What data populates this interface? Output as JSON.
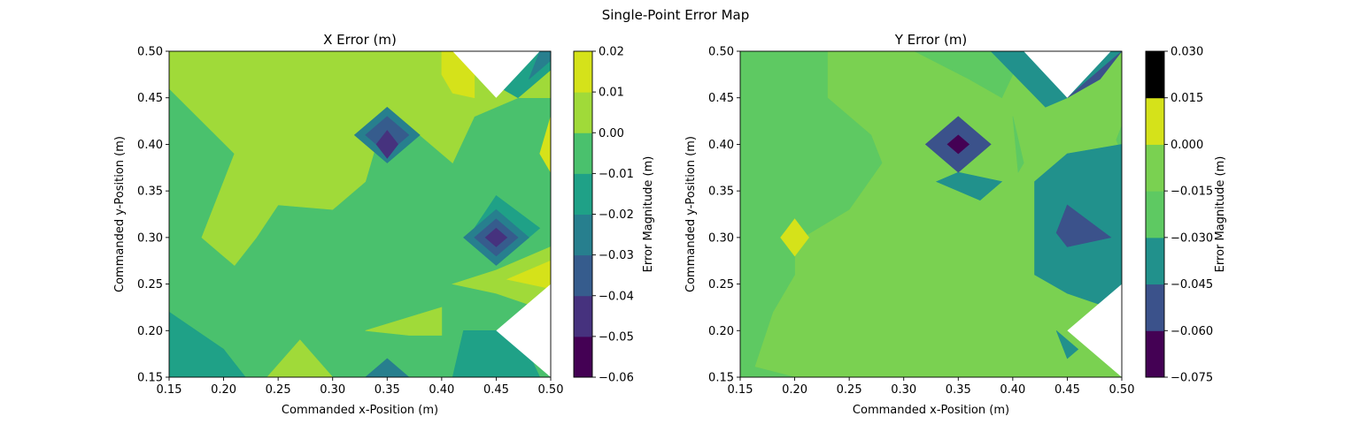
{
  "figure": {
    "suptitle": "Single-Point Error Map"
  },
  "palette": {
    "levels_8": [
      "#440154",
      "#46327e",
      "#365c8d",
      "#277f8e",
      "#1fa187",
      "#4ac16d",
      "#a0da39",
      "#d5e21a"
    ],
    "levels_6": [
      "#440154",
      "#3b528b",
      "#21918c",
      "#5ec962",
      "#7ad151",
      "#d5e21a"
    ]
  },
  "chart_data": [
    {
      "type": "contourf",
      "title": "X Error (m)",
      "xlabel": "Commanded x-Position (m)",
      "ylabel": "Commanded y-Position (m)",
      "xlim": [
        0.15,
        0.5
      ],
      "ylim": [
        0.15,
        0.5
      ],
      "xticks": [
        "0.15",
        "0.20",
        "0.25",
        "0.30",
        "0.35",
        "0.40",
        "0.45",
        "0.50"
      ],
      "yticks": [
        "0.15",
        "0.20",
        "0.25",
        "0.30",
        "0.35",
        "0.40",
        "0.45",
        "0.50"
      ],
      "grid": false,
      "colorbar": {
        "label": "Error Magnitude (m)",
        "levels": [
          -0.06,
          -0.05,
          -0.04,
          -0.03,
          -0.02,
          -0.01,
          0.0,
          0.01,
          0.02
        ],
        "tick_labels": [
          "−0.06",
          "−0.05",
          "−0.04",
          "−0.03",
          "−0.02",
          "−0.01",
          "0.00",
          "0.01",
          "0.02"
        ]
      },
      "regions": [
        {
          "level": 5,
          "points": [
            [
              0.15,
              0.15
            ],
            [
              0.5,
              0.15
            ],
            [
              0.5,
              0.5
            ],
            [
              0.15,
              0.5
            ]
          ]
        },
        {
          "level": 6,
          "points": [
            [
              0.15,
              0.46
            ],
            [
              0.21,
              0.39
            ],
            [
              0.18,
              0.3
            ],
            [
              0.21,
              0.27
            ],
            [
              0.23,
              0.3
            ],
            [
              0.25,
              0.335
            ],
            [
              0.3,
              0.33
            ],
            [
              0.33,
              0.36
            ],
            [
              0.35,
              0.44
            ],
            [
              0.38,
              0.41
            ],
            [
              0.41,
              0.38
            ],
            [
              0.43,
              0.43
            ],
            [
              0.47,
              0.45
            ],
            [
              0.5,
              0.45
            ],
            [
              0.5,
              0.5
            ],
            [
              0.15,
              0.5
            ]
          ]
        },
        {
          "level": 6,
          "points": [
            [
              0.5,
              0.29
            ],
            [
              0.45,
              0.265
            ],
            [
              0.41,
              0.25
            ],
            [
              0.45,
              0.24
            ],
            [
              0.5,
              0.22
            ]
          ]
        },
        {
          "level": 6,
          "points": [
            [
              0.33,
              0.2
            ],
            [
              0.4,
              0.225
            ],
            [
              0.4,
              0.195
            ],
            [
              0.37,
              0.195
            ]
          ]
        },
        {
          "level": 6,
          "points": [
            [
              0.24,
              0.15
            ],
            [
              0.27,
              0.19
            ],
            [
              0.3,
              0.15
            ]
          ]
        },
        {
          "level": 7,
          "points": [
            [
              0.4,
              0.5
            ],
            [
              0.4,
              0.475
            ],
            [
              0.41,
              0.455
            ],
            [
              0.43,
              0.45
            ],
            [
              0.43,
              0.5
            ]
          ]
        },
        {
          "level": 7,
          "points": [
            [
              0.5,
              0.43
            ],
            [
              0.49,
              0.39
            ],
            [
              0.5,
              0.37
            ]
          ]
        },
        {
          "level": 7,
          "points": [
            [
              0.5,
              0.275
            ],
            [
              0.46,
              0.255
            ],
            [
              0.5,
              0.245
            ]
          ]
        },
        {
          "level": 4,
          "points": [
            [
              0.47,
              0.45
            ],
            [
              0.49,
              0.47
            ],
            [
              0.5,
              0.48
            ],
            [
              0.5,
              0.5
            ],
            [
              0.45,
              0.5
            ],
            [
              0.44,
              0.47
            ]
          ]
        },
        {
          "level": 4,
          "points": [
            [
              0.43,
              0.31
            ],
            [
              0.45,
              0.345
            ],
            [
              0.49,
              0.31
            ],
            [
              0.46,
              0.28
            ],
            [
              0.44,
              0.28
            ]
          ]
        },
        {
          "level": 4,
          "points": [
            [
              0.15,
              0.17
            ],
            [
              0.21,
              0.15
            ],
            [
              0.19,
              0.15
            ]
          ]
        },
        {
          "level": 4,
          "points": [
            [
              0.42,
              0.2
            ],
            [
              0.47,
              0.2
            ],
            [
              0.49,
              0.15
            ],
            [
              0.41,
              0.15
            ]
          ]
        },
        {
          "level": 4,
          "points": [
            [
              0.15,
              0.22
            ],
            [
              0.2,
              0.18
            ],
            [
              0.22,
              0.15
            ],
            [
              0.15,
              0.15
            ]
          ]
        },
        {
          "level": 3,
          "points": [
            [
              0.35,
              0.44
            ],
            [
              0.38,
              0.41
            ],
            [
              0.35,
              0.38
            ],
            [
              0.32,
              0.41
            ]
          ]
        },
        {
          "level": 3,
          "points": [
            [
              0.45,
              0.33
            ],
            [
              0.48,
              0.3
            ],
            [
              0.45,
              0.27
            ],
            [
              0.42,
              0.3
            ]
          ]
        },
        {
          "level": 3,
          "points": [
            [
              0.35,
              0.17
            ],
            [
              0.37,
              0.15
            ],
            [
              0.33,
              0.15
            ]
          ]
        },
        {
          "level": 3,
          "points": [
            [
              0.48,
              0.47
            ],
            [
              0.5,
              0.49
            ],
            [
              0.5,
              0.5
            ],
            [
              0.49,
              0.5
            ]
          ]
        },
        {
          "level": 2,
          "points": [
            [
              0.35,
              0.43
            ],
            [
              0.37,
              0.41
            ],
            [
              0.35,
              0.39
            ],
            [
              0.33,
              0.41
            ]
          ]
        },
        {
          "level": 2,
          "points": [
            [
              0.45,
              0.32
            ],
            [
              0.47,
              0.3
            ],
            [
              0.45,
              0.28
            ],
            [
              0.43,
              0.3
            ]
          ]
        },
        {
          "level": 1,
          "points": [
            [
              0.35,
              0.415
            ],
            [
              0.36,
              0.4
            ],
            [
              0.35,
              0.385
            ],
            [
              0.34,
              0.4
            ]
          ]
        },
        {
          "level": 1,
          "points": [
            [
              0.45,
              0.31
            ],
            [
              0.46,
              0.3
            ],
            [
              0.45,
              0.29
            ],
            [
              0.44,
              0.3
            ]
          ]
        }
      ],
      "nodata_regions": [
        {
          "points": [
            [
              0.41,
              0.5
            ],
            [
              0.45,
              0.45
            ],
            [
              0.49,
              0.5
            ]
          ]
        },
        {
          "points": [
            [
              0.45,
              0.2
            ],
            [
              0.5,
              0.25
            ],
            [
              0.5,
              0.15
            ]
          ]
        }
      ]
    },
    {
      "type": "contourf",
      "title": "Y Error (m)",
      "xlabel": "Commanded x-Position (m)",
      "ylabel": "Commanded y-Position (m)",
      "xlim": [
        0.15,
        0.5
      ],
      "ylim": [
        0.15,
        0.5
      ],
      "xticks": [
        "0.15",
        "0.20",
        "0.25",
        "0.30",
        "0.35",
        "0.40",
        "0.45",
        "0.50"
      ],
      "yticks": [
        "0.15",
        "0.20",
        "0.25",
        "0.30",
        "0.35",
        "0.40",
        "0.45",
        "0.50"
      ],
      "grid": false,
      "colorbar": {
        "label": "Error Magnitude (m)",
        "levels": [
          -0.075,
          -0.06,
          -0.045,
          -0.03,
          -0.015,
          0.0,
          0.015,
          0.03
        ],
        "tick_labels": [
          "−0.075",
          "−0.060",
          "−0.045",
          "−0.030",
          "−0.015",
          "0.000",
          "0.015",
          "0.030"
        ]
      },
      "regions": [
        {
          "level": 4,
          "points": [
            [
              0.15,
              0.15
            ],
            [
              0.5,
              0.15
            ],
            [
              0.5,
              0.5
            ],
            [
              0.15,
              0.5
            ]
          ]
        },
        {
          "level": 3,
          "points": [
            [
              0.15,
              0.5
            ],
            [
              0.23,
              0.5
            ],
            [
              0.23,
              0.45
            ],
            [
              0.27,
              0.41
            ],
            [
              0.28,
              0.38
            ],
            [
              0.25,
              0.33
            ],
            [
              0.2,
              0.295
            ],
            [
              0.2,
              0.26
            ],
            [
              0.18,
              0.22
            ],
            [
              0.16,
              0.15
            ],
            [
              0.15,
              0.15
            ]
          ]
        },
        {
          "level": 3,
          "points": [
            [
              0.31,
              0.5
            ],
            [
              0.36,
              0.47
            ],
            [
              0.39,
              0.45
            ],
            [
              0.41,
              0.5
            ]
          ]
        },
        {
          "level": 3,
          "points": [
            [
              0.15,
              0.15
            ],
            [
              0.15,
              0.165
            ],
            [
              0.2,
              0.15
            ]
          ]
        },
        {
          "level": 3,
          "points": [
            [
              0.5,
              0.5
            ],
            [
              0.5,
              0.42
            ],
            [
              0.495,
              0.405
            ],
            [
              0.5,
              0.39
            ]
          ]
        },
        {
          "level": 3,
          "points": [
            [
              0.4,
              0.43
            ],
            [
              0.41,
              0.38
            ],
            [
              0.405,
              0.37
            ]
          ]
        },
        {
          "level": 2,
          "points": [
            [
              0.38,
              0.5
            ],
            [
              0.43,
              0.44
            ],
            [
              0.45,
              0.45
            ],
            [
              0.5,
              0.5
            ]
          ]
        },
        {
          "level": 2,
          "points": [
            [
              0.42,
              0.36
            ],
            [
              0.45,
              0.39
            ],
            [
              0.5,
              0.4
            ],
            [
              0.5,
              0.22
            ],
            [
              0.45,
              0.24
            ],
            [
              0.42,
              0.26
            ]
          ]
        },
        {
          "level": 2,
          "points": [
            [
              0.37,
              0.34
            ],
            [
              0.39,
              0.36
            ],
            [
              0.35,
              0.37
            ],
            [
              0.33,
              0.36
            ]
          ]
        },
        {
          "level": 2,
          "points": [
            [
              0.44,
              0.2
            ],
            [
              0.45,
              0.17
            ],
            [
              0.46,
              0.18
            ]
          ]
        },
        {
          "level": 1,
          "points": [
            [
              0.35,
              0.43
            ],
            [
              0.38,
              0.4
            ],
            [
              0.35,
              0.37
            ],
            [
              0.32,
              0.4
            ]
          ]
        },
        {
          "level": 1,
          "points": [
            [
              0.45,
              0.335
            ],
            [
              0.49,
              0.3
            ],
            [
              0.45,
              0.29
            ],
            [
              0.44,
              0.305
            ]
          ]
        },
        {
          "level": 1,
          "points": [
            [
              0.45,
              0.45
            ],
            [
              0.48,
              0.47
            ],
            [
              0.5,
              0.5
            ]
          ]
        },
        {
          "level": 0,
          "points": [
            [
              0.35,
              0.41
            ],
            [
              0.36,
              0.4
            ],
            [
              0.35,
              0.39
            ],
            [
              0.34,
              0.4
            ]
          ]
        },
        {
          "level": 5,
          "points": [
            [
              0.2,
              0.32
            ],
            [
              0.213,
              0.3
            ],
            [
              0.2,
              0.28
            ],
            [
              0.187,
              0.3
            ]
          ]
        }
      ],
      "nodata_regions": [
        {
          "points": [
            [
              0.41,
              0.5
            ],
            [
              0.45,
              0.45
            ],
            [
              0.49,
              0.5
            ]
          ]
        },
        {
          "points": [
            [
              0.45,
              0.2
            ],
            [
              0.5,
              0.25
            ],
            [
              0.5,
              0.15
            ]
          ]
        }
      ]
    }
  ]
}
